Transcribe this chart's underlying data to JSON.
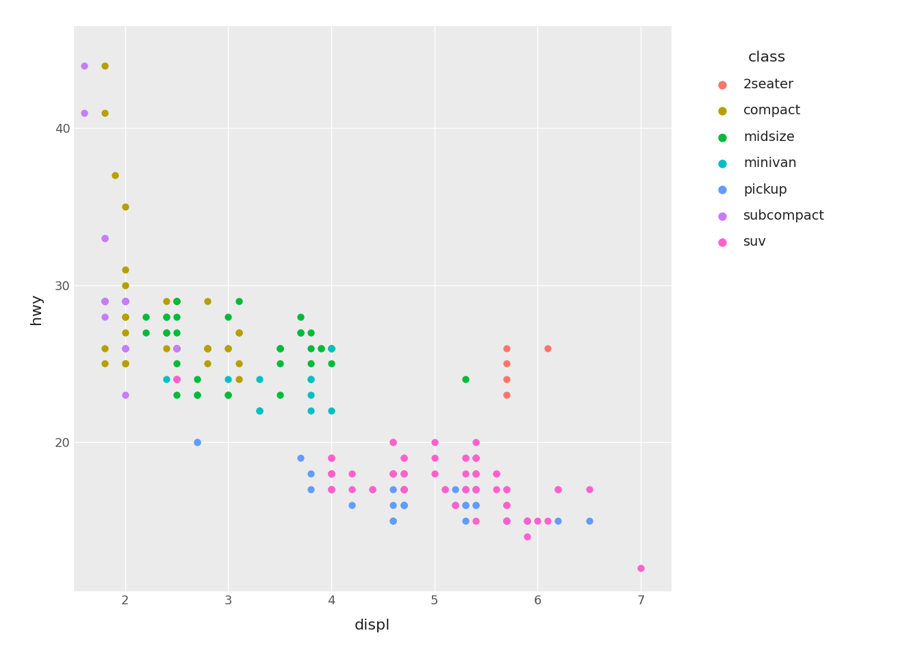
{
  "title": "",
  "xlabel": "displ",
  "ylabel": "hwy",
  "legend_title": "class",
  "xlim": [
    1.5,
    7.3
  ],
  "ylim": [
    10.5,
    46.5
  ],
  "xticks": [
    2,
    3,
    4,
    5,
    6,
    7
  ],
  "yticks": [
    20,
    30,
    40
  ],
  "background_color": "#ffffff",
  "panel_background": "#ebebeb",
  "grid_color": "#ffffff",
  "classes": [
    "2seater",
    "compact",
    "midsize",
    "minivan",
    "pickup",
    "subcompact",
    "suv"
  ],
  "colors": {
    "2seater": "#F8766D",
    "compact": "#B79F00",
    "midsize": "#00BA38",
    "minivan": "#00BFC4",
    "pickup": "#619CFF",
    "subcompact": "#C77CFF",
    "suv": "#FF61CC"
  },
  "data": {
    "2seater": {
      "displ": [
        5.7,
        5.7,
        6.1,
        5.7,
        5.7
      ],
      "hwy": [
        26,
        25,
        26,
        23,
        24
      ]
    },
    "compact": {
      "displ": [
        1.8,
        1.8,
        2.0,
        2.0,
        2.8,
        2.8,
        3.1,
        1.8,
        1.8,
        2.0,
        2.0,
        2.0,
        2.0,
        2.8,
        1.9,
        2.0,
        2.5,
        2.5,
        2.5,
        2.5,
        2.5,
        1.8,
        1.8,
        2.0,
        2.0,
        2.8,
        2.8,
        3.1,
        3.1,
        2.5,
        2.5,
        2.8,
        2.8,
        3.1,
        2.0,
        2.4,
        2.4,
        3.0,
        3.0
      ],
      "hwy": [
        29,
        29,
        31,
        30,
        26,
        26,
        27,
        26,
        25,
        28,
        27,
        25,
        25,
        25,
        37,
        35,
        29,
        26,
        29,
        29,
        24,
        44,
        41,
        29,
        26,
        29,
        26,
        27,
        24,
        26,
        26,
        26,
        26,
        25,
        28,
        29,
        26,
        26,
        26
      ]
    },
    "midsize": {
      "displ": [
        2.5,
        2.5,
        2.5,
        2.5,
        3.8,
        3.8,
        3.8,
        5.3,
        2.4,
        2.4,
        3.1,
        3.5,
        3.5,
        3.5,
        3.5,
        3.7,
        3.7,
        3.9,
        3.9,
        4.0,
        4.0,
        4.0,
        4.0,
        2.7,
        2.7,
        2.7,
        3.0,
        3.7,
        2.2,
        2.2,
        2.4,
        2.4,
        3.0,
        3.0,
        3.5,
        2.5,
        2.5
      ],
      "hwy": [
        27,
        25,
        26,
        23,
        26,
        25,
        27,
        24,
        28,
        27,
        29,
        26,
        26,
        26,
        25,
        27,
        28,
        26,
        26,
        26,
        26,
        25,
        26,
        23,
        24,
        23,
        28,
        27,
        27,
        28,
        28,
        27,
        23,
        23,
        23,
        28,
        29
      ]
    },
    "minivan": {
      "displ": [
        2.4,
        3.0,
        3.3,
        3.3,
        3.8,
        3.8,
        3.8,
        4.0,
        3.3,
        3.8,
        4.0
      ],
      "hwy": [
        24,
        24,
        24,
        22,
        22,
        24,
        24,
        26,
        22,
        23,
        22
      ]
    },
    "pickup": {
      "displ": [
        2.7,
        2.7,
        3.7,
        4.7,
        4.7,
        4.7,
        5.2,
        5.7,
        5.9,
        3.8,
        3.8,
        4.0,
        4.2,
        5.3,
        5.3,
        5.3,
        5.7,
        6.5,
        4.7,
        4.7,
        4.7,
        5.2,
        5.7,
        5.9,
        4.6,
        5.4,
        5.4,
        4.0,
        4.6,
        4.6,
        4.6,
        5.4,
        5.4,
        4.7,
        5.7,
        5.7,
        6.2
      ],
      "hwy": [
        20,
        20,
        19,
        17,
        17,
        17,
        17,
        15,
        15,
        18,
        17,
        17,
        16,
        16,
        16,
        15,
        15,
        15,
        16,
        16,
        16,
        16,
        15,
        15,
        17,
        17,
        16,
        18,
        16,
        15,
        15,
        17,
        16,
        16,
        16,
        15,
        15
      ]
    },
    "subcompact": {
      "displ": [
        1.8,
        1.8,
        1.8,
        1.8,
        1.8,
        1.8,
        2.0,
        2.0,
        2.0,
        2.0,
        2.5,
        2.5,
        2.0,
        2.0,
        2.0,
        2.5,
        2.5,
        1.6,
        1.6,
        2.0,
        2.0,
        2.0,
        2.0,
        2.0,
        2.0
      ],
      "hwy": [
        29,
        29,
        28,
        29,
        33,
        33,
        29,
        26,
        29,
        26,
        26,
        26,
        29,
        26,
        26,
        24,
        24,
        44,
        41,
        29,
        29,
        29,
        29,
        29,
        23
      ]
    },
    "suv": {
      "displ": [
        4.0,
        4.0,
        4.0,
        4.0,
        4.7,
        4.7,
        4.7,
        5.2,
        5.7,
        5.9,
        4.7,
        4.7,
        5.2,
        5.7,
        5.9,
        6.1,
        5.4,
        5.4,
        5.4,
        4.0,
        4.0,
        4.6,
        5.0,
        5.0,
        5.4,
        5.4,
        5.4,
        5.4,
        4.6,
        5.3,
        5.3,
        5.7,
        6.0,
        5.7,
        5.7,
        6.2,
        6.2,
        7.0,
        5.6,
        5.6,
        5.6,
        4.6,
        5.4,
        5.3,
        5.3,
        4.0,
        4.0,
        4.0,
        4.0,
        4.6,
        4.6,
        4.6,
        5.0,
        5.4,
        5.4,
        5.4,
        4.0,
        4.0,
        5.1,
        5.1,
        4.7,
        4.7,
        4.7,
        4.7,
        4.2,
        4.2,
        4.4,
        4.4,
        2.5,
        2.5,
        5.3,
        5.3,
        5.7,
        6.5
      ],
      "hwy": [
        19,
        18,
        18,
        19,
        19,
        18,
        17,
        16,
        15,
        15,
        19,
        17,
        16,
        15,
        14,
        15,
        18,
        18,
        15,
        17,
        17,
        20,
        20,
        19,
        20,
        19,
        19,
        19,
        18,
        17,
        17,
        16,
        15,
        16,
        17,
        17,
        17,
        12,
        17,
        18,
        18,
        18,
        17,
        17,
        18,
        18,
        19,
        17,
        18,
        18,
        20,
        18,
        18,
        17,
        17,
        18,
        17,
        18,
        17,
        17,
        17,
        17,
        18,
        18,
        18,
        17,
        17,
        17,
        24,
        24,
        19,
        19,
        17,
        17
      ]
    }
  }
}
